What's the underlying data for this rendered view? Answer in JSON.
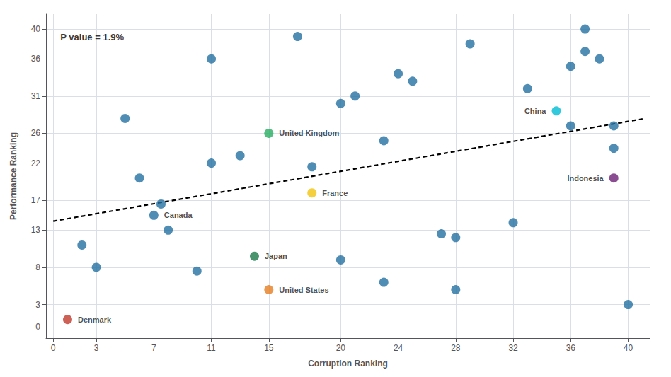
{
  "chart_data": {
    "type": "scatter",
    "title": "",
    "xlabel": "Corruption Ranking",
    "ylabel": "Performance Ranking",
    "xlim": [
      -0.5,
      41.5
    ],
    "ylim": [
      -1.5,
      42
    ],
    "xticks": [
      0,
      3,
      7,
      11,
      15,
      20,
      24,
      28,
      32,
      36,
      40
    ],
    "yticks": [
      0,
      3,
      8,
      13,
      17,
      22,
      26,
      31,
      36,
      40
    ],
    "grid": true,
    "annotations": [
      {
        "text": "P value = 1.9%",
        "x": 0.5,
        "y": 39.5
      }
    ],
    "series": [
      {
        "type": "scatter",
        "x": [
          1,
          2,
          3,
          5,
          6,
          7,
          7.5,
          8,
          10,
          11,
          11,
          13,
          14,
          15,
          15,
          17,
          18,
          18,
          20,
          20,
          21,
          23,
          23,
          24,
          25,
          27,
          28,
          28,
          29,
          32,
          33,
          35,
          36,
          36,
          37,
          37,
          38,
          39,
          39,
          39,
          40
        ],
        "values": [
          1,
          11,
          8,
          28,
          20,
          15,
          16.5,
          13,
          7.5,
          36,
          22,
          23,
          9.5,
          26,
          5,
          39,
          21.5,
          18,
          9,
          30,
          31,
          6,
          25,
          34,
          33,
          12.5,
          5,
          12,
          38,
          14,
          32,
          29,
          27,
          35,
          40,
          37,
          36,
          27,
          24,
          20,
          3
        ],
        "colors": [
          "#c0392b",
          "#2471a3",
          "#2471a3",
          "#2471a3",
          "#2471a3",
          "#2471a3",
          "#2471a3",
          "#2471a3",
          "#2471a3",
          "#2471a3",
          "#2471a3",
          "#2471a3",
          "#1a7a4a",
          "#27ae60",
          "#e67e22",
          "#2471a3",
          "#2471a3",
          "#f1c40f",
          "#2471a3",
          "#2471a3",
          "#2471a3",
          "#2471a3",
          "#2471a3",
          "#2471a3",
          "#2471a3",
          "#2471a3",
          "#2471a3",
          "#2471a3",
          "#2471a3",
          "#2471a3",
          "#2471a3",
          "#00bcd4",
          "#2471a3",
          "#2471a3",
          "#2471a3",
          "#2471a3",
          "#2471a3",
          "#2471a3",
          "#2471a3",
          "#6d2077",
          "#2471a3"
        ],
        "labels": [
          "Denmark",
          null,
          null,
          null,
          null,
          "Canada",
          null,
          null,
          null,
          null,
          null,
          null,
          "Japan",
          "United Kingdom",
          "United States",
          null,
          null,
          "France",
          null,
          null,
          null,
          null,
          null,
          null,
          null,
          null,
          null,
          null,
          null,
          null,
          null,
          "China",
          null,
          null,
          null,
          null,
          null,
          null,
          null,
          "Indonesia",
          null
        ]
      },
      {
        "type": "line",
        "x": [
          0,
          41
        ],
        "values": [
          14.2,
          27.935
        ],
        "color": "#000000",
        "line_style": "dashed"
      }
    ]
  }
}
